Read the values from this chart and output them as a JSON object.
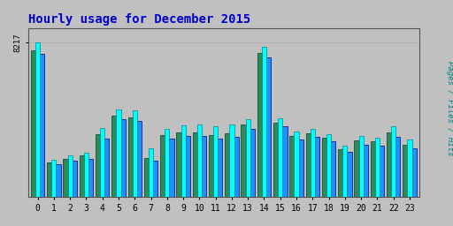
{
  "title": "Hourly usage for December 2015",
  "title_color": "#0000cc",
  "title_fontsize": 10,
  "hours": [
    0,
    1,
    2,
    3,
    4,
    5,
    6,
    7,
    8,
    9,
    10,
    11,
    12,
    13,
    14,
    15,
    16,
    17,
    18,
    19,
    20,
    21,
    22,
    23
  ],
  "hits": [
    8217,
    2000,
    2200,
    2350,
    3700,
    4650,
    4600,
    2600,
    3650,
    3800,
    3850,
    3750,
    3850,
    4150,
    8000,
    4200,
    3500,
    3650,
    3350,
    2750,
    3250,
    3150,
    3750,
    3050
  ],
  "pages": [
    7800,
    1850,
    2050,
    2200,
    3350,
    4350,
    4250,
    2100,
    3300,
    3450,
    3450,
    3300,
    3400,
    3850,
    7650,
    3950,
    3250,
    3400,
    3150,
    2550,
    3000,
    2950,
    3450,
    2800
  ],
  "files": [
    7600,
    1750,
    1950,
    2050,
    3100,
    4150,
    4050,
    1950,
    3100,
    3250,
    3250,
    3100,
    3200,
    3650,
    7450,
    3750,
    3050,
    3200,
    2950,
    2400,
    2800,
    2750,
    3200,
    2600
  ],
  "ylim": [
    0,
    9000
  ],
  "ytick_value": 8217,
  "ylabel": "Pages / Files / Hits",
  "bg_color": "#c0c0c0",
  "plot_bg_color": "#c0c0c0",
  "bar_color_pages": "#2e8b57",
  "bar_color_hits": "#00ffff",
  "bar_color_files": "#1e90ff",
  "grid_color": "#aaaaaa"
}
